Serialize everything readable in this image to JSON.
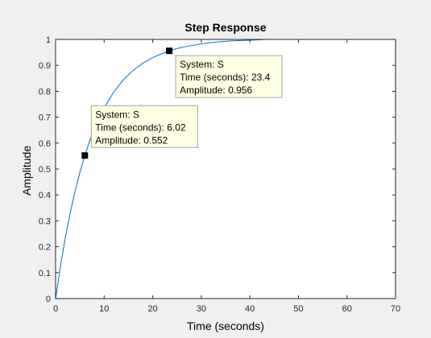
{
  "chart_data": {
    "type": "line",
    "title": "Step Response",
    "xlabel": "Time (seconds)",
    "ylabel": "Amplitude",
    "xlim": [
      0,
      70
    ],
    "ylim": [
      0,
      1
    ],
    "xticks": [
      0,
      10,
      20,
      30,
      40,
      50,
      60,
      70
    ],
    "yticks": [
      0,
      0.1,
      0.2,
      0.3,
      0.4,
      0.5,
      0.6,
      0.7,
      0.8,
      0.9,
      1
    ],
    "xtick_labels": [
      "0",
      "10",
      "20",
      "30",
      "40",
      "50",
      "60",
      "70"
    ],
    "ytick_labels": [
      "0",
      "0.1",
      "0.2",
      "0.3",
      "0.4",
      "0.5",
      "0.6",
      "0.7",
      "0.8",
      "0.9",
      "1"
    ],
    "grid": false,
    "steady_state": 1,
    "series": [
      {
        "color": "#0072bd",
        "x": [
          0,
          1,
          2,
          3,
          4,
          5,
          6.02,
          7,
          8,
          9,
          10,
          12,
          14,
          16,
          18,
          20,
          22,
          23.4,
          25,
          27,
          30,
          33,
          36,
          40,
          43.5
        ],
        "y": [
          0,
          0.125,
          0.234,
          0.33,
          0.414,
          0.487,
          0.552,
          0.607,
          0.656,
          0.699,
          0.736,
          0.798,
          0.845,
          0.881,
          0.909,
          0.93,
          0.946,
          0.956,
          0.965,
          0.973,
          0.983,
          0.99,
          0.994,
          0.997,
          1.0
        ]
      }
    ],
    "datatips": [
      {
        "x": 6.02,
        "y": 0.552,
        "lines": [
          "System: S",
          "Time (seconds): 6.02",
          "Amplitude: 0.552"
        ]
      },
      {
        "x": 23.4,
        "y": 0.956,
        "lines": [
          "System: S",
          "Time (seconds): 23.4",
          "Amplitude: 0.956"
        ]
      }
    ],
    "colors": {
      "line": "#0072bd",
      "figure_bg": "#f0f0f0",
      "axes_bg": "#ffffff",
      "axes_border": "#262626",
      "tip_bg": "#ffffe1",
      "tip_border": "#a0a0a0"
    }
  }
}
